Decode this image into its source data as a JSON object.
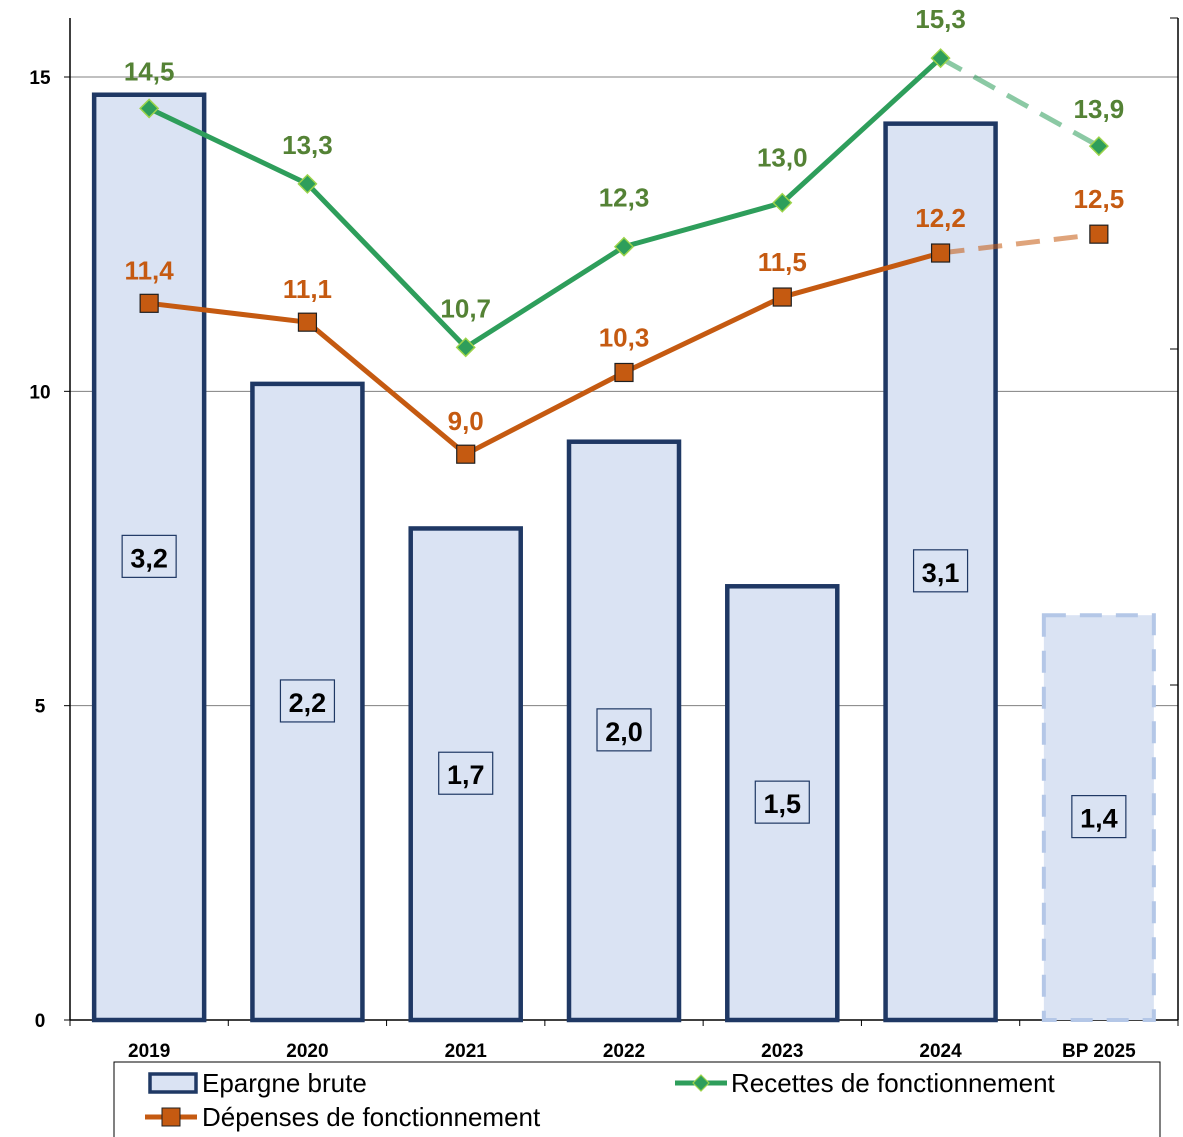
{
  "chart_data": {
    "type": "bar",
    "categories": [
      "2019",
      "2020",
      "2021",
      "2022",
      "2023",
      "2024",
      "BP 2025"
    ],
    "bar_series": {
      "name": "Epargne brute",
      "values": [
        3.2,
        2.2,
        1.7,
        2.0,
        1.5,
        3.1,
        1.4
      ],
      "labels": [
        "3,2",
        "2,2",
        "1,7",
        "2,0",
        "1,5",
        "3,1",
        "1,4"
      ],
      "color": "#dae3f3",
      "edge_color": "#1f3864"
    },
    "line_series": [
      {
        "name": "Recettes de fonctionnement",
        "values": [
          14.5,
          13.3,
          10.7,
          12.3,
          13.0,
          15.3,
          13.9
        ],
        "labels": [
          "14,5",
          "13,3",
          "10,7",
          "12,3",
          "13,0",
          "15,3",
          "13,9"
        ],
        "color": "#2e9e5b",
        "label_color": "#548235",
        "marker": "diamond"
      },
      {
        "name": "Dépenses de fonctionnement",
        "values": [
          11.4,
          11.1,
          9.0,
          10.3,
          11.5,
          12.2,
          12.5
        ],
        "labels": [
          "11,4",
          "11,1",
          "9,0",
          "10,3",
          "11,5",
          "12,2",
          "12,5"
        ],
        "color": "#c55a11",
        "label_color": "#c55a11",
        "marker": "square"
      }
    ],
    "projected_category": "BP 2025",
    "left_axis": {
      "ticks": [
        0,
        5,
        10,
        15
      ],
      "ylim": [
        0,
        15.9
      ]
    },
    "bar_axis_ylim": [
      0,
      3.5
    ],
    "grid": true,
    "legend": "bottom"
  }
}
